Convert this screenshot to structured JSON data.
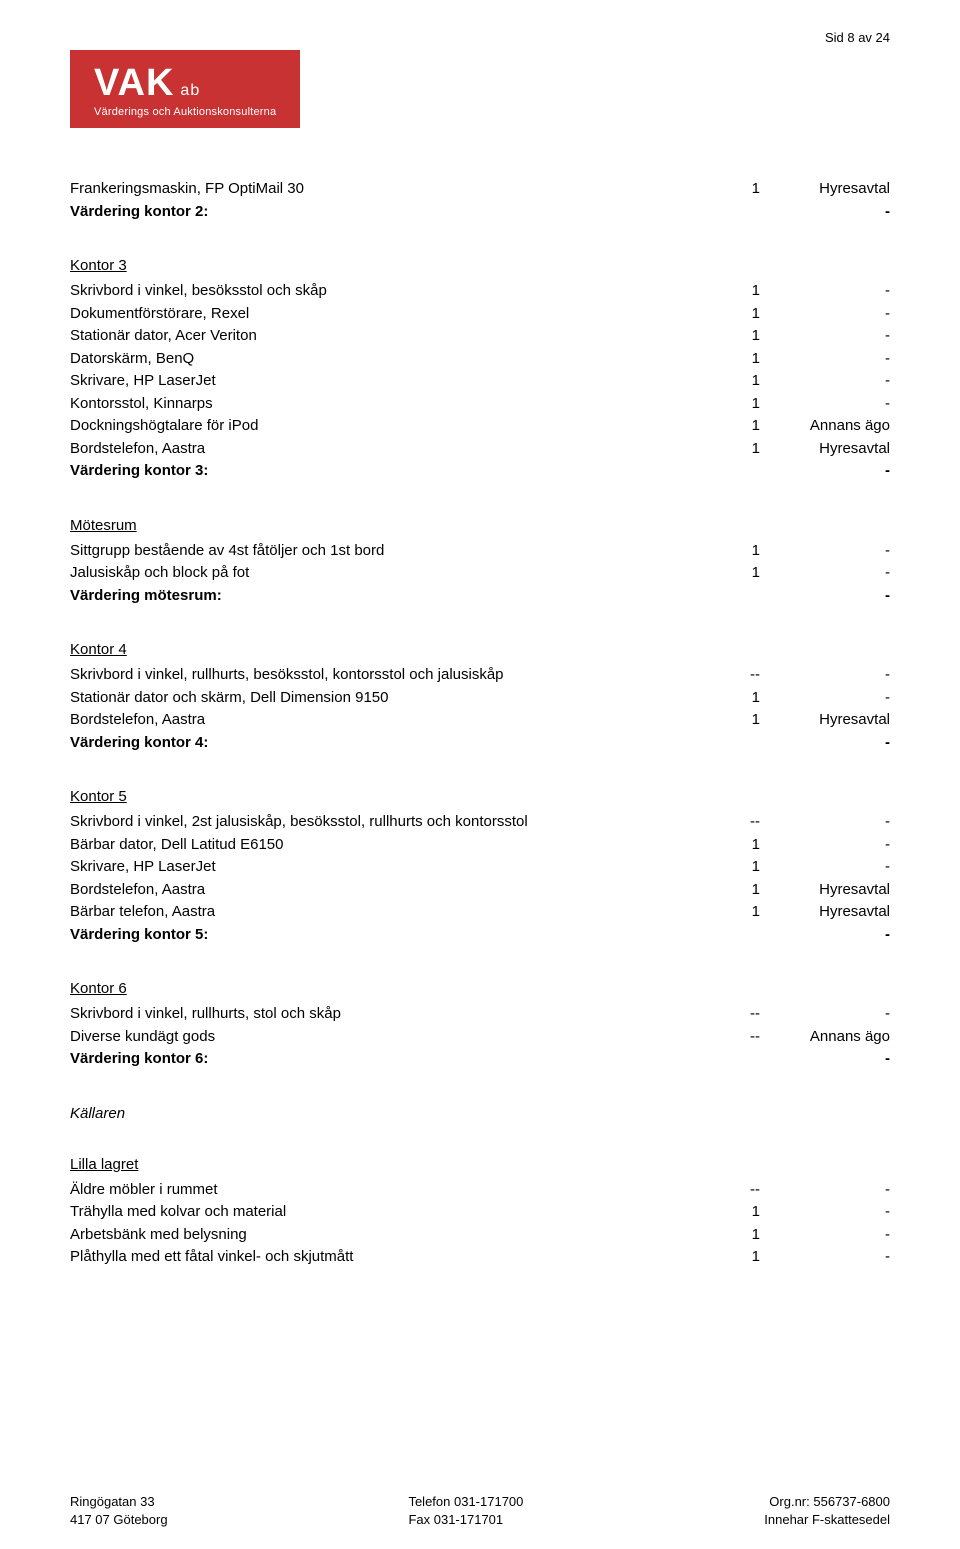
{
  "pageNumber": "Sid 8 av 24",
  "logo": {
    "main": "VAK",
    "suffix": "ab",
    "subtitle": "Värderings och Auktionskonsulterna"
  },
  "topBlock": {
    "rows": [
      {
        "desc": "Frankeringsmaskin, FP OptiMail 30",
        "qty": "1",
        "val": "Hyresavtal"
      }
    ],
    "summary": {
      "label": "Värdering kontor 2:",
      "val": "-"
    }
  },
  "sections": [
    {
      "title": "Kontor 3",
      "rows": [
        {
          "desc": "Skrivbord i vinkel, besöksstol och skåp",
          "qty": "1",
          "val": "-"
        },
        {
          "desc": "Dokumentförstörare, Rexel",
          "qty": "1",
          "val": "-"
        },
        {
          "desc": "Stationär dator, Acer Veriton",
          "qty": "1",
          "val": "-"
        },
        {
          "desc": "Datorskärm, BenQ",
          "qty": "1",
          "val": "-"
        },
        {
          "desc": "Skrivare, HP LaserJet",
          "qty": "1",
          "val": "-"
        },
        {
          "desc": "Kontorsstol, Kinnarps",
          "qty": "1",
          "val": "-"
        },
        {
          "desc": "Dockningshögtalare för iPod",
          "qty": "1",
          "val": "Annans ägo"
        },
        {
          "desc": "Bordstelefon, Aastra",
          "qty": "1",
          "val": "Hyresavtal"
        }
      ],
      "summary": {
        "label": "Värdering kontor 3:",
        "val": "-"
      }
    },
    {
      "title": "Mötesrum",
      "rows": [
        {
          "desc": "Sittgrupp bestående av 4st fåtöljer och 1st bord",
          "qty": "1",
          "val": "-"
        },
        {
          "desc": "Jalusiskåp och block på fot",
          "qty": "1",
          "val": "-"
        }
      ],
      "summary": {
        "label": "Värdering mötesrum:",
        "val": "-"
      }
    },
    {
      "title": "Kontor 4",
      "rows": [
        {
          "desc": "Skrivbord i vinkel, rullhurts, besöksstol, kontorsstol och jalusiskåp",
          "qty": "--",
          "val": "-"
        },
        {
          "desc": "Stationär dator och skärm, Dell Dimension 9150",
          "qty": "1",
          "val": "-"
        },
        {
          "desc": "Bordstelefon, Aastra",
          "qty": "1",
          "val": "Hyresavtal"
        }
      ],
      "summary": {
        "label": "Värdering kontor 4:",
        "val": "-"
      }
    },
    {
      "title": "Kontor 5",
      "rows": [
        {
          "desc": "Skrivbord i vinkel, 2st jalusiskåp, besöksstol, rullhurts och kontorsstol",
          "qty": "--",
          "val": "-"
        },
        {
          "desc": "Bärbar dator, Dell Latitud E6150",
          "qty": "1",
          "val": "-"
        },
        {
          "desc": "Skrivare, HP LaserJet",
          "qty": "1",
          "val": "-"
        },
        {
          "desc": "Bordstelefon, Aastra",
          "qty": "1",
          "val": "Hyresavtal"
        },
        {
          "desc": "Bärbar telefon, Aastra",
          "qty": "1",
          "val": "Hyresavtal"
        }
      ],
      "summary": {
        "label": "Värdering kontor 5:",
        "val": "-"
      }
    },
    {
      "title": "Kontor 6",
      "rows": [
        {
          "desc": "Skrivbord i vinkel, rullhurts, stol och skåp",
          "qty": "--",
          "val": "-"
        },
        {
          "desc": "Diverse kundägt gods",
          "qty": "--",
          "val": "Annans ägo"
        }
      ],
      "summary": {
        "label": "Värdering kontor 6:",
        "val": "-"
      }
    }
  ],
  "italicSection": {
    "title": "Källaren"
  },
  "bottomSection": {
    "title": "Lilla lagret",
    "rows": [
      {
        "desc": "Äldre möbler i rummet",
        "qty": "--",
        "val": "-"
      },
      {
        "desc": "Trähylla med kolvar och material",
        "qty": "1",
        "val": "-"
      },
      {
        "desc": "Arbetsbänk med belysning",
        "qty": "1",
        "val": "-"
      },
      {
        "desc": "Plåthylla med ett fåtal vinkel- och skjutmått",
        "qty": "1",
        "val": "-"
      }
    ]
  },
  "footer": {
    "left": {
      "line1": "Ringögatan 33",
      "line2": "417 07 Göteborg"
    },
    "center": {
      "line1": "Telefon 031-171700",
      "line2": "Fax 031-171701"
    },
    "right": {
      "line1": "Org.nr: 556737-6800",
      "line2": "Innehar F-skattesedel"
    }
  }
}
